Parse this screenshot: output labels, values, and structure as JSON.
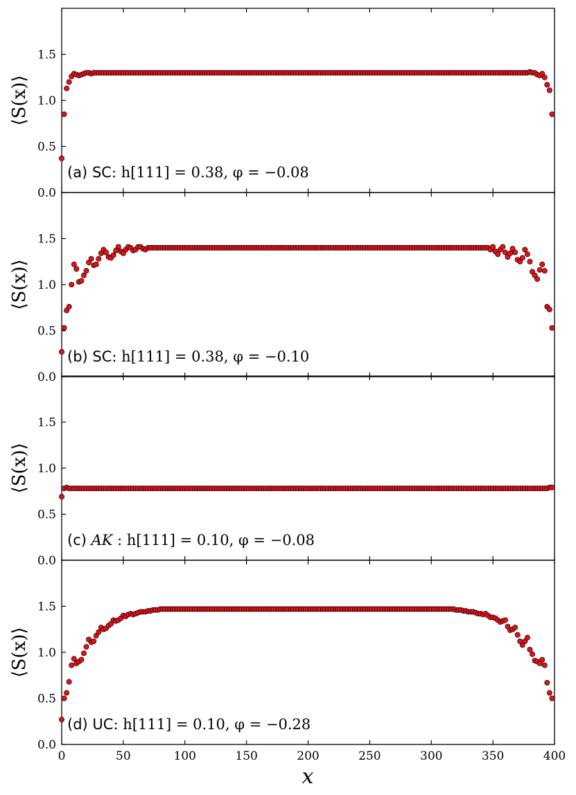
{
  "figure": {
    "xlabel": "x",
    "ylabel": "⟨S(x)⟩"
  },
  "chart_data": [
    {
      "type": "scatter",
      "panel": "a",
      "annotation": {
        "prefix": "(a)",
        "phase": "SC",
        "phase_style": "sans",
        "expr": ": h[111] = 0.38,  φ = −0.08"
      },
      "xlabel": "x",
      "ylabel": "⟨S(x)⟩",
      "xlim": [
        0,
        400
      ],
      "ylim": [
        0.0,
        2.0
      ],
      "xticks": [
        0,
        50,
        100,
        150,
        200,
        250,
        300,
        350,
        400
      ],
      "yticks": [
        0.0,
        0.5,
        1.0,
        1.5
      ],
      "marker_color": "#e0141b",
      "series": [
        {
          "x": "0..398 step 2",
          "edge_left": [
            0.37,
            0.85,
            1.13,
            1.2,
            1.26,
            1.29,
            1.28,
            1.27,
            1.28,
            1.29,
            1.3,
            1.3,
            1.29
          ],
          "plateau": 1.3,
          "edge_right": [
            1.3,
            1.3,
            1.3,
            1.31,
            1.3,
            1.3,
            1.28,
            1.27,
            1.29,
            1.25,
            1.17,
            1.11,
            0.85
          ]
        }
      ]
    },
    {
      "type": "scatter",
      "panel": "b",
      "annotation": {
        "prefix": "(b)",
        "phase": "SC",
        "phase_style": "sans",
        "expr": ": h[111] = 0.38,  φ = −0.10"
      },
      "xlabel": "x",
      "ylabel": "⟨S(x)⟩",
      "xlim": [
        0,
        400
      ],
      "ylim": [
        0.0,
        2.0
      ],
      "xticks": [
        0,
        50,
        100,
        150,
        200,
        250,
        300,
        350,
        400
      ],
      "yticks": [
        0.0,
        0.5,
        1.0,
        1.5
      ],
      "marker_color": "#e0141b",
      "series": [
        {
          "x": "0..398 step 2",
          "edge_left": [
            0.27,
            0.53,
            0.72,
            0.76,
            1.0,
            1.22,
            1.17,
            1.03,
            1.04,
            1.1,
            1.15,
            1.24,
            1.28,
            1.21,
            1.22,
            1.28,
            1.34,
            1.38,
            1.35,
            1.3,
            1.29,
            1.32,
            1.37,
            1.41,
            1.36,
            1.34,
            1.38,
            1.41,
            1.4,
            1.37,
            1.38,
            1.41,
            1.41,
            1.39,
            1.38
          ],
          "plateau": 1.4,
          "edge_right": [
            1.38,
            1.41,
            1.36,
            1.33,
            1.38,
            1.41,
            1.35,
            1.3,
            1.34,
            1.39,
            1.35,
            1.27,
            1.25,
            1.29,
            1.38,
            1.33,
            1.25,
            1.14,
            1.1,
            1.06,
            1.16,
            1.22,
            1.15,
            0.76,
            0.73,
            0.53
          ]
        }
      ]
    },
    {
      "type": "scatter",
      "panel": "c",
      "annotation": {
        "prefix": "(c)",
        "phase": "AK",
        "phase_style": "math-italic",
        "expr": " : h[111] = 0.10,  φ = −0.08"
      },
      "xlabel": "x",
      "ylabel": "⟨S(x)⟩",
      "xlim": [
        0,
        400
      ],
      "ylim": [
        0.0,
        2.0
      ],
      "xticks": [
        0,
        50,
        100,
        150,
        200,
        250,
        300,
        350,
        400
      ],
      "yticks": [
        0.0,
        0.5,
        1.0,
        1.5
      ],
      "marker_color": "#e0141b",
      "series": [
        {
          "x": "0..398 step 2",
          "edge_left": [
            0.69,
            0.78,
            0.79
          ],
          "plateau": 0.78,
          "edge_right": [
            0.78,
            0.79,
            0.79
          ]
        }
      ]
    },
    {
      "type": "scatter",
      "panel": "d",
      "annotation": {
        "prefix": "(d)",
        "phase": "UC",
        "phase_style": "sans",
        "expr": ": h[111] = 0.10,  φ = −0.28"
      },
      "xlabel": "x",
      "ylabel": "⟨S(x)⟩",
      "xlim": [
        0,
        400
      ],
      "ylim": [
        0.0,
        2.0
      ],
      "xticks": [
        0,
        50,
        100,
        150,
        200,
        250,
        300,
        350,
        400
      ],
      "yticks": [
        0.0,
        0.5,
        1.0,
        1.5
      ],
      "marker_color": "#e0141b",
      "series": [
        {
          "x": "0..398 step 2",
          "edge_left": [
            0.27,
            0.5,
            0.56,
            0.68,
            0.86,
            0.93,
            0.88,
            0.9,
            0.92,
            0.99,
            1.06,
            1.14,
            1.11,
            1.12,
            1.18,
            1.22,
            1.27,
            1.25,
            1.26,
            1.29,
            1.31,
            1.35,
            1.34,
            1.35,
            1.37,
            1.4,
            1.39,
            1.41,
            1.42,
            1.41,
            1.42,
            1.43,
            1.44,
            1.44,
            1.44,
            1.45,
            1.45,
            1.46,
            1.46,
            1.46,
            1.47,
            1.47,
            1.47,
            1.47
          ],
          "plateau": 1.47,
          "edge_right": [
            1.47,
            1.47,
            1.46,
            1.46,
            1.46,
            1.45,
            1.45,
            1.44,
            1.44,
            1.44,
            1.43,
            1.42,
            1.42,
            1.41,
            1.42,
            1.4,
            1.38,
            1.38,
            1.37,
            1.35,
            1.33,
            1.34,
            1.35,
            1.28,
            1.24,
            1.25,
            1.27,
            1.19,
            1.12,
            1.08,
            1.12,
            1.16,
            1.03,
            0.98,
            0.91,
            0.9,
            0.88,
            0.92,
            0.86,
            0.67,
            0.56,
            0.5
          ]
        }
      ]
    }
  ]
}
